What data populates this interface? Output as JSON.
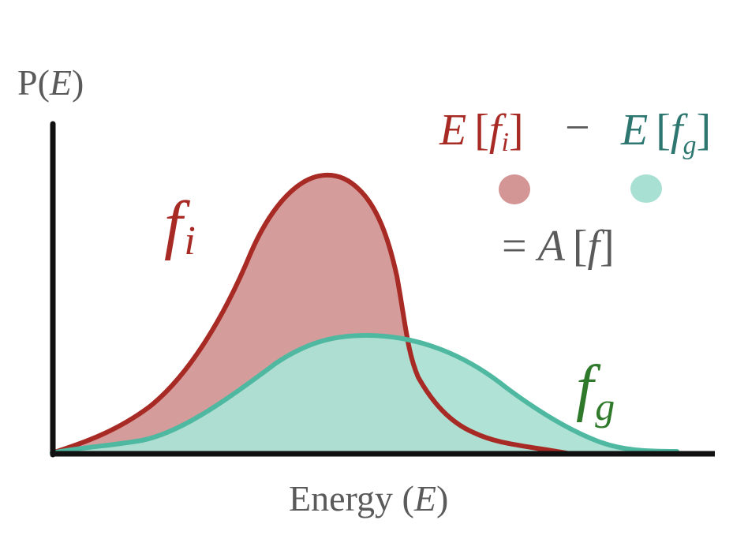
{
  "colors": {
    "axis": "#111111",
    "label_gray": "#5a5a5a",
    "fi_line": "#a82a24",
    "fi_fill": "#d59c9c",
    "fg_line": "#4fb8a0",
    "fg_fill": "#ace0d4",
    "fg_label": "#2f7a2a",
    "fg_expr": "#2e7771",
    "dot_red": "#d49595",
    "dot_teal": "#a8e0d3"
  },
  "y_axis": {
    "prefix": "P(",
    "var": "E",
    "suffix": ")"
  },
  "x_axis": {
    "prefix": "Energy (",
    "var": "E",
    "suffix": ")"
  },
  "curve_fi": {
    "name": "f",
    "sub": "i"
  },
  "curve_fg": {
    "name": "f",
    "sub": "g"
  },
  "equation": {
    "term1": {
      "E": "E",
      "open": "[",
      "f": "f",
      "sub": "i",
      "close": "]"
    },
    "minus": "−",
    "term2": {
      "E": "E",
      "open": "[",
      "f": "f",
      "sub": "g",
      "close": "]"
    },
    "rhs": {
      "equals": "=",
      "A": "A",
      "open": "[",
      "f": "f",
      "close": "]"
    }
  }
}
